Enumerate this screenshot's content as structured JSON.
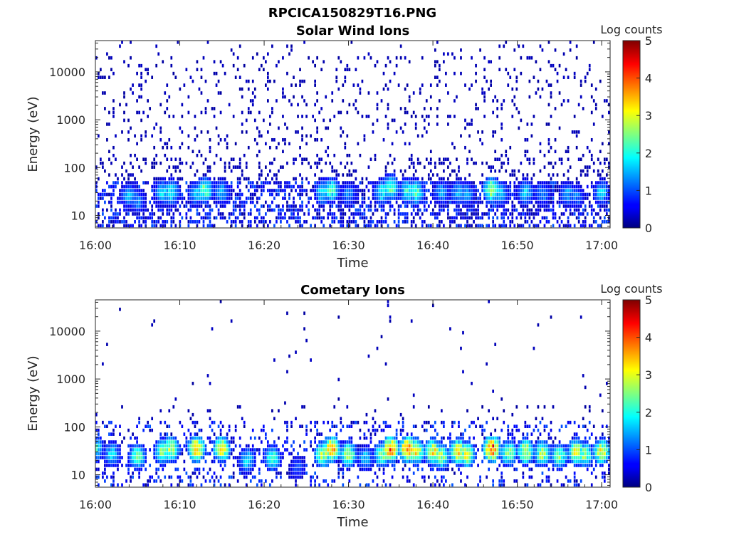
{
  "figure": {
    "title": "RPCICA150829T16.PNG"
  },
  "colorbar": {
    "label": "Log counts",
    "ticks": [
      "0",
      "1",
      "2",
      "3",
      "4",
      "5"
    ],
    "range": [
      0,
      5
    ],
    "colormap": "jet"
  },
  "chart_data": [
    {
      "type": "heatmap",
      "title": "Solar Wind Ions",
      "xlabel": "Time",
      "ylabel": "Energy (eV)",
      "x_ticks": [
        "16:00",
        "16:10",
        "16:20",
        "16:30",
        "16:40",
        "16:50",
        "17:00"
      ],
      "y_ticks": [
        "10",
        "100",
        "1000",
        "10000"
      ],
      "y_scale": "log",
      "ylim_eV": [
        5.5,
        45000
      ],
      "xlim": [
        "16:00",
        "17:01"
      ],
      "z_label": "Log counts",
      "zlim": [
        0,
        5
      ],
      "background_noise_log_counts": 0.1,
      "low_energy_band_eV": [
        6,
        45
      ],
      "bursts": [
        {
          "time": "16:04",
          "energy_eV": 26,
          "log_counts": 1.5
        },
        {
          "time": "16:05",
          "energy_eV": 20,
          "log_counts": 1.3
        },
        {
          "time": "16:08",
          "energy_eV": 30,
          "log_counts": 1.7
        },
        {
          "time": "16:09",
          "energy_eV": 30,
          "log_counts": 1.9
        },
        {
          "time": "16:12",
          "energy_eV": 28,
          "log_counts": 1.6
        },
        {
          "time": "16:13",
          "energy_eV": 34,
          "log_counts": 2.4
        },
        {
          "time": "16:15",
          "energy_eV": 30,
          "log_counts": 1.5
        },
        {
          "time": "16:27",
          "energy_eV": 30,
          "log_counts": 1.9
        },
        {
          "time": "16:28",
          "energy_eV": 34,
          "log_counts": 2.2
        },
        {
          "time": "16:30",
          "energy_eV": 28,
          "log_counts": 1.3
        },
        {
          "time": "16:34",
          "energy_eV": 30,
          "log_counts": 1.9
        },
        {
          "time": "16:35",
          "energy_eV": 38,
          "log_counts": 2.3
        },
        {
          "time": "16:37",
          "energy_eV": 32,
          "log_counts": 2.0
        },
        {
          "time": "16:38",
          "energy_eV": 30,
          "log_counts": 2.2
        },
        {
          "time": "16:41",
          "energy_eV": 30,
          "log_counts": 1.4
        },
        {
          "time": "16:43",
          "energy_eV": 30,
          "log_counts": 1.5
        },
        {
          "time": "16:44",
          "energy_eV": 28,
          "log_counts": 1.4
        },
        {
          "time": "16:47",
          "energy_eV": 34,
          "log_counts": 2.8
        },
        {
          "time": "16:48",
          "energy_eV": 28,
          "log_counts": 1.6
        },
        {
          "time": "16:51",
          "energy_eV": 30,
          "log_counts": 1.7
        },
        {
          "time": "16:53",
          "energy_eV": 28,
          "log_counts": 1.3
        },
        {
          "time": "16:56",
          "energy_eV": 28,
          "log_counts": 1.4
        },
        {
          "time": "16:57",
          "energy_eV": 24,
          "log_counts": 1.2
        },
        {
          "time": "17:00",
          "energy_eV": 30,
          "log_counts": 1.6
        }
      ]
    },
    {
      "type": "heatmap",
      "title": "Cometary Ions",
      "xlabel": "Time",
      "ylabel": "Energy (eV)",
      "x_ticks": [
        "16:00",
        "16:10",
        "16:20",
        "16:30",
        "16:40",
        "16:50",
        "17:00"
      ],
      "y_ticks": [
        "10",
        "100",
        "1000",
        "10000"
      ],
      "y_scale": "log",
      "ylim_eV": [
        5.5,
        45000
      ],
      "xlim": [
        "16:00",
        "17:01"
      ],
      "z_label": "Log counts",
      "zlim": [
        0,
        5
      ],
      "background_noise_log_counts": 0.01,
      "low_energy_band_eV": [
        6,
        130
      ],
      "bursts": [
        {
          "time": "16:00",
          "energy_eV": 34,
          "log_counts": 2.0
        },
        {
          "time": "16:02",
          "energy_eV": 26,
          "log_counts": 1.8
        },
        {
          "time": "16:05",
          "energy_eV": 24,
          "log_counts": 2.4
        },
        {
          "time": "16:08",
          "energy_eV": 30,
          "log_counts": 2.5
        },
        {
          "time": "16:09",
          "energy_eV": 34,
          "log_counts": 2.8
        },
        {
          "time": "16:12",
          "energy_eV": 34,
          "log_counts": 3.6
        },
        {
          "time": "16:15",
          "energy_eV": 34,
          "log_counts": 3.2
        },
        {
          "time": "16:18",
          "energy_eV": 20,
          "log_counts": 1.8
        },
        {
          "time": "16:21",
          "energy_eV": 22,
          "log_counts": 2.2
        },
        {
          "time": "16:24",
          "energy_eV": 14,
          "log_counts": 1.0
        },
        {
          "time": "16:27",
          "energy_eV": 26,
          "log_counts": 2.8
        },
        {
          "time": "16:28",
          "energy_eV": 34,
          "log_counts": 3.6
        },
        {
          "time": "16:30",
          "energy_eV": 26,
          "log_counts": 2.8
        },
        {
          "time": "16:32",
          "energy_eV": 22,
          "log_counts": 1.6
        },
        {
          "time": "16:34",
          "energy_eV": 26,
          "log_counts": 2.6
        },
        {
          "time": "16:35",
          "energy_eV": 34,
          "log_counts": 3.8
        },
        {
          "time": "16:37",
          "energy_eV": 34,
          "log_counts": 3.8
        },
        {
          "time": "16:38",
          "energy_eV": 30,
          "log_counts": 3.2
        },
        {
          "time": "16:40",
          "energy_eV": 30,
          "log_counts": 3.2
        },
        {
          "time": "16:41",
          "energy_eV": 24,
          "log_counts": 2.6
        },
        {
          "time": "16:43",
          "energy_eV": 30,
          "log_counts": 3.3
        },
        {
          "time": "16:44",
          "energy_eV": 26,
          "log_counts": 3.0
        },
        {
          "time": "16:47",
          "energy_eV": 34,
          "log_counts": 4.2
        },
        {
          "time": "16:49",
          "energy_eV": 28,
          "log_counts": 2.6
        },
        {
          "time": "16:51",
          "energy_eV": 30,
          "log_counts": 3.0
        },
        {
          "time": "16:53",
          "energy_eV": 28,
          "log_counts": 2.8
        },
        {
          "time": "16:55",
          "energy_eV": 24,
          "log_counts": 2.5
        },
        {
          "time": "16:57",
          "energy_eV": 30,
          "log_counts": 3.0
        },
        {
          "time": "16:58",
          "energy_eV": 26,
          "log_counts": 2.6
        },
        {
          "time": "17:00",
          "energy_eV": 30,
          "log_counts": 3.0
        }
      ]
    }
  ]
}
